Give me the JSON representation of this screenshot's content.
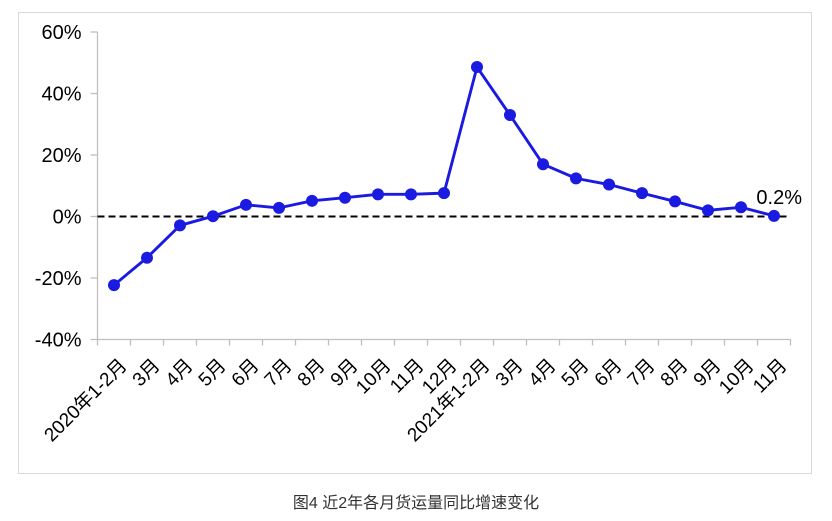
{
  "chart": {
    "caption": "图4 近2年各月货运量同比增速变化",
    "colors": {
      "line": "#1a1ae0",
      "marker": "#1a1ae0",
      "axis": "#bfbfbf",
      "frame_border": "#d9d9d9",
      "zero_line": "#000000",
      "text": "#000000",
      "caption_text": "#333333",
      "background": "#ffffff"
    }
  },
  "chart_data": {
    "type": "line",
    "title": "图4 近2年各月货运量同比增速变化",
    "xlabel": "",
    "ylabel": "",
    "unit": "%",
    "categories": [
      "2020年1-2月",
      "3月",
      "4月",
      "5月",
      "6月",
      "7月",
      "8月",
      "9月",
      "10月",
      "11月",
      "12月",
      "2021年1-2月",
      "3月",
      "4月",
      "5月",
      "6月",
      "7月",
      "8月",
      "9月",
      "10月",
      "11月"
    ],
    "values": [
      -22.3,
      -13.4,
      -2.9,
      0.1,
      3.8,
      2.8,
      5.1,
      6.1,
      7.2,
      7.2,
      7.6,
      48.6,
      33.0,
      17.0,
      12.4,
      10.4,
      7.6,
      4.9,
      2.0,
      3.0,
      0.2
    ],
    "ylim": [
      -40,
      60
    ],
    "yticks": [
      60,
      40,
      20,
      0,
      -20,
      -40
    ],
    "ytick_labels": [
      "60%",
      "40%",
      "20%",
      "0%",
      "-20%",
      "-40%"
    ],
    "grid": false,
    "legend": false,
    "zero_reference_line": "dashed-black",
    "x_label_rotation_deg": -45,
    "annotations": [
      {
        "text": "0.2%",
        "target_index": 20
      }
    ]
  }
}
